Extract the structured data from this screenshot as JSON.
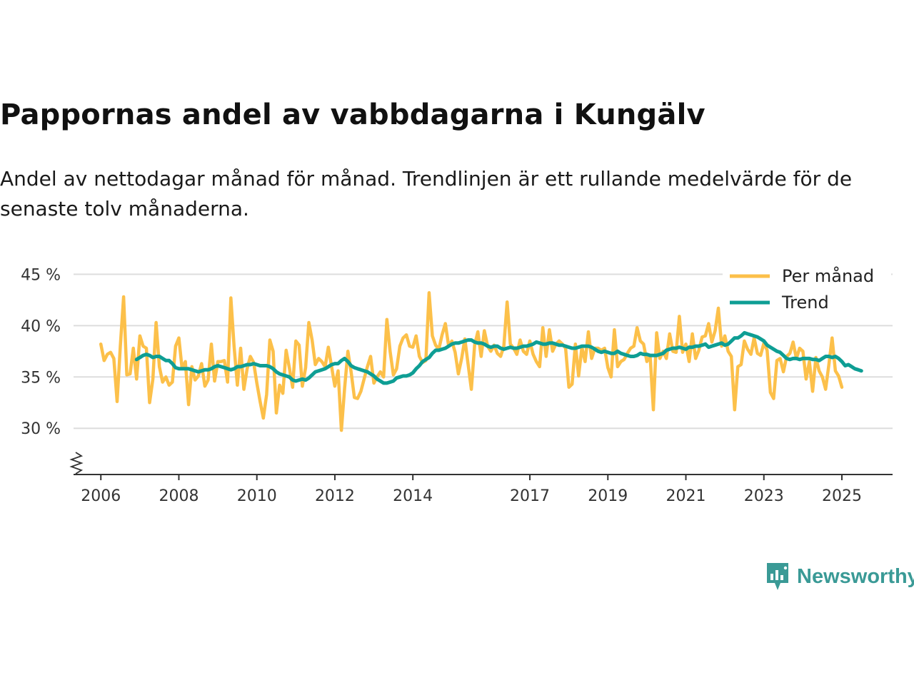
{
  "header": {
    "title": "Pappornas andel av vabbdagarna i Kungälv",
    "subtitle": "Andel av nettodagar månad för månad. Trendlinjen är ett rullande medelvärde för de senaste tolv månaderna."
  },
  "brand": {
    "name": "Newsworthy",
    "icon": "newsworthy-logo-icon",
    "color": "#3a9a96"
  },
  "colors": {
    "monthly": "#fcc04a",
    "trend": "#0e9e94",
    "grid": "#dddddd",
    "axis": "#333333"
  },
  "chart_data": {
    "type": "line",
    "title": "Pappornas andel av vabbdagarna i Kungälv",
    "xlabel": "",
    "ylabel": "",
    "ylim": [
      25.5,
      46
    ],
    "xlim": [
      2005.3,
      2026.3
    ],
    "yticks": [
      30,
      35,
      40,
      45
    ],
    "ytick_labels": [
      "30 %",
      "35 %",
      "40 %",
      "45 %"
    ],
    "xticks": [
      2006,
      2008,
      2010,
      2012,
      2014,
      2017,
      2019,
      2021,
      2023,
      2025
    ],
    "xtick_labels": [
      "2006",
      "2008",
      "2010",
      "2012",
      "2014",
      "2017",
      "2019",
      "2021",
      "2023",
      "2025"
    ],
    "grid": true,
    "axis_break": true,
    "legend_position": "top-right",
    "series": [
      {
        "name": "Per månad",
        "start": 2006.0,
        "step": 0.0833333,
        "values": [
          38.2,
          36.6,
          37.2,
          37.4,
          36.8,
          32.6,
          38.0,
          42.8,
          35.2,
          35.3,
          37.8,
          34.8,
          39.0,
          38.0,
          37.8,
          32.5,
          34.8,
          40.3,
          36.0,
          34.5,
          35.0,
          34.2,
          34.5,
          38.0,
          38.8,
          35.8,
          36.5,
          32.3,
          36.0,
          34.7,
          35.1,
          36.3,
          34.1,
          34.7,
          38.2,
          34.6,
          36.5,
          36.5,
          36.6,
          34.5,
          42.7,
          38.0,
          34.2,
          37.8,
          33.8,
          35.8,
          37.0,
          36.4,
          34.4,
          32.6,
          31.0,
          33.3,
          38.6,
          37.5,
          31.5,
          34.2,
          33.4,
          37.6,
          35.9,
          34.0,
          38.5,
          38.1,
          34.1,
          35.9,
          40.3,
          38.6,
          36.2,
          36.8,
          36.5,
          36.0,
          37.9,
          36.0,
          34.1,
          35.6,
          29.8,
          33.9,
          37.5,
          35.5,
          33.0,
          32.9,
          33.6,
          34.8,
          36.0,
          37.0,
          34.4,
          35.0,
          35.5,
          35.0,
          40.6,
          37.5,
          35.2,
          35.8,
          38.0,
          38.8,
          39.1,
          38.0,
          37.9,
          39.0,
          37.0,
          36.4,
          36.6,
          43.2,
          39.0,
          38.1,
          37.7,
          39.1,
          40.2,
          38.0,
          38.5,
          37.4,
          35.3,
          36.8,
          38.7,
          36.2,
          33.8,
          38.1,
          39.4,
          37.0,
          39.5,
          38.0,
          37.5,
          38.1,
          37.3,
          37.0,
          38.0,
          42.3,
          38.2,
          37.8,
          37.2,
          38.6,
          37.5,
          37.2,
          38.5,
          37.2,
          36.5,
          36.0,
          39.8,
          37.0,
          39.6,
          37.5,
          38.2,
          38.5,
          38.2,
          37.8,
          34.0,
          34.3,
          38.2,
          35.1,
          37.9,
          36.5,
          39.4,
          36.8,
          37.8,
          37.8,
          37.6,
          37.8,
          35.9,
          35.0,
          39.6,
          36.0,
          36.5,
          36.7,
          37.3,
          37.8,
          38.0,
          39.8,
          38.5,
          38.2,
          36.5,
          37.0,
          31.8,
          39.3,
          36.8,
          37.5,
          36.8,
          39.2,
          37.5,
          37.4,
          40.9,
          37.4,
          38.2,
          36.5,
          39.2,
          36.8,
          37.6,
          38.9,
          39.0,
          40.2,
          38.4,
          39.5,
          41.7,
          38.0,
          39.0,
          37.5,
          37.0,
          31.8,
          36.0,
          36.2,
          38.5,
          37.7,
          37.2,
          38.8,
          37.3,
          37.1,
          38.3,
          37.6,
          33.5,
          32.9,
          36.6,
          36.8,
          35.5,
          37.0,
          37.3,
          38.4,
          36.8,
          37.8,
          37.5,
          34.8,
          36.5,
          33.6,
          36.9,
          35.6,
          35.0,
          33.8,
          36.2,
          38.8,
          35.6,
          35.1,
          34.0
        ]
      },
      {
        "name": "Trend",
        "start": 2006.917,
        "step": 0.0833333,
        "values": [
          36.7,
          36.9,
          37.1,
          37.2,
          37.1,
          36.9,
          37.0,
          37.0,
          36.8,
          36.6,
          36.6,
          36.3,
          35.9,
          35.8,
          35.8,
          35.8,
          35.8,
          35.7,
          35.6,
          35.5,
          35.6,
          35.7,
          35.7,
          35.8,
          36.0,
          36.1,
          36.0,
          35.9,
          35.8,
          35.7,
          35.8,
          36.0,
          36.0,
          36.1,
          36.2,
          36.2,
          36.3,
          36.2,
          36.1,
          36.1,
          36.1,
          36.0,
          35.8,
          35.5,
          35.3,
          35.2,
          35.1,
          35.0,
          34.7,
          34.6,
          34.7,
          34.8,
          34.7,
          34.9,
          35.2,
          35.5,
          35.6,
          35.7,
          35.8,
          36.0,
          36.2,
          36.3,
          36.3,
          36.6,
          36.8,
          36.5,
          36.1,
          35.9,
          35.8,
          35.7,
          35.6,
          35.5,
          35.3,
          35.1,
          34.8,
          34.6,
          34.4,
          34.4,
          34.5,
          34.6,
          34.9,
          35.0,
          35.1,
          35.1,
          35.2,
          35.4,
          35.8,
          36.1,
          36.5,
          36.7,
          36.9,
          37.3,
          37.6,
          37.6,
          37.7,
          37.8,
          38.0,
          38.2,
          38.3,
          38.3,
          38.4,
          38.5,
          38.6,
          38.6,
          38.4,
          38.3,
          38.3,
          38.2,
          38.0,
          37.9,
          38.0,
          38.0,
          37.8,
          37.7,
          37.8,
          37.9,
          37.8,
          37.8,
          37.9,
          38.0,
          38.0,
          38.1,
          38.2,
          38.4,
          38.3,
          38.2,
          38.2,
          38.3,
          38.3,
          38.2,
          38.1,
          38.1,
          38.0,
          37.9,
          37.8,
          37.8,
          37.9,
          38.0,
          38.0,
          38.0,
          37.9,
          37.7,
          37.5,
          37.4,
          37.5,
          37.4,
          37.3,
          37.3,
          37.5,
          37.3,
          37.2,
          37.1,
          37.0,
          37.0,
          37.1,
          37.3,
          37.2,
          37.2,
          37.1,
          37.1,
          37.1,
          37.2,
          37.3,
          37.6,
          37.7,
          37.8,
          37.8,
          37.9,
          37.8,
          37.7,
          37.9,
          37.9,
          38.0,
          38.0,
          38.1,
          38.2,
          37.9,
          38.0,
          38.1,
          38.2,
          38.3,
          38.1,
          38.2,
          38.5,
          38.8,
          38.8,
          39.0,
          39.3,
          39.2,
          39.1,
          39.0,
          38.9,
          38.7,
          38.5,
          38.1,
          37.9,
          37.7,
          37.5,
          37.4,
          37.1,
          36.8,
          36.7,
          36.8,
          36.8,
          36.7,
          36.8,
          36.8,
          36.8,
          36.7,
          36.7,
          36.6,
          36.8,
          37.0,
          37.0,
          36.9,
          37.0,
          36.8,
          36.5,
          36.1,
          36.2,
          36.0,
          35.8,
          35.7,
          35.6
        ]
      }
    ]
  }
}
